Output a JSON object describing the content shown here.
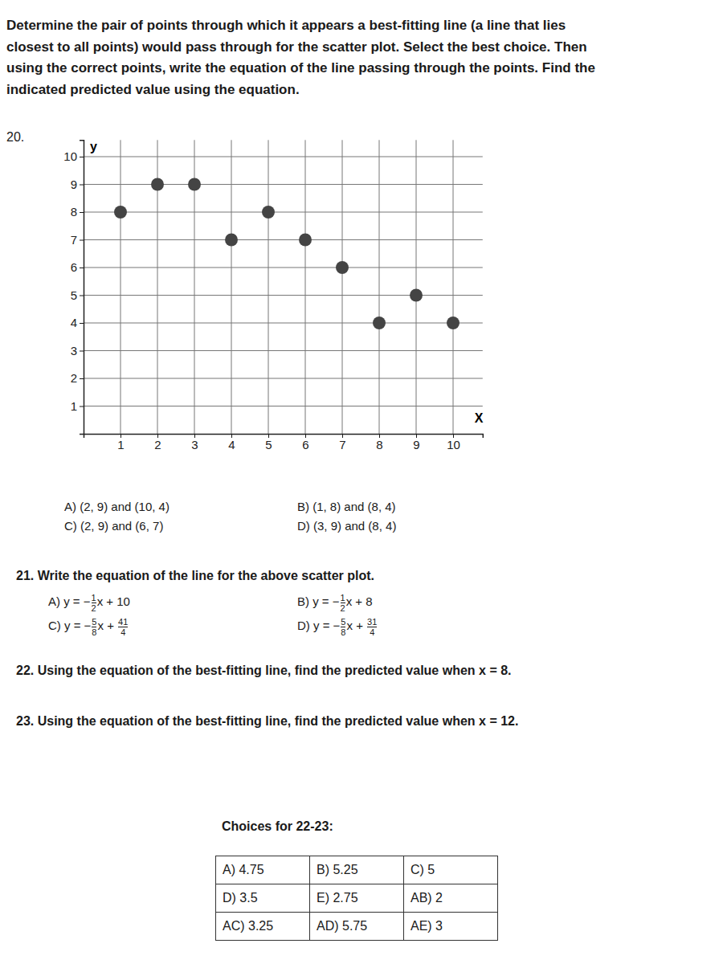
{
  "instructions": [
    "Determine the pair of points through which it appears a best-fitting line (a line that lies",
    "closest to all points) would pass through for the scatter plot. Select the best choice. Then",
    "using the correct points, write the equation of the line passing through the points. Find the",
    "indicated predicted value using the equation."
  ],
  "question_20": {
    "number": "20.",
    "choices": [
      "A) (2, 9) and (10, 4)",
      "B) (1, 8) and (8, 4)",
      "C) (2, 9) and (6, 7)",
      "D) (3, 9) and (8, 4)"
    ]
  },
  "chart_data": {
    "type": "scatter",
    "x": [
      1,
      2,
      3,
      4,
      5,
      6,
      7,
      8,
      9,
      10
    ],
    "values": [
      8,
      9,
      9,
      7,
      8,
      7,
      6,
      4,
      5,
      4
    ],
    "xlim": [
      0,
      10.8
    ],
    "ylim": [
      0,
      10.6
    ],
    "xticks": [
      1,
      2,
      3,
      4,
      5,
      6,
      7,
      8,
      9,
      10
    ],
    "yticks": [
      1,
      2,
      3,
      4,
      5,
      6,
      7,
      8,
      9,
      10
    ],
    "xlabel": "X",
    "ylabel": "y",
    "grid": true,
    "color": "#444444",
    "marker": "circle"
  },
  "question_21": {
    "text": "21. Write the equation of the line for the above scatter plot.",
    "choices": [
      {
        "label": "A)",
        "parts": [
          "y = −",
          {
            "num": "1",
            "den": "2"
          },
          "x + 10"
        ]
      },
      {
        "label": "B)",
        "parts": [
          "y = −",
          {
            "num": "1",
            "den": "2"
          },
          "x + 8"
        ]
      },
      {
        "label": "C)",
        "parts": [
          "y = −",
          {
            "num": "5",
            "den": "8"
          },
          "x + ",
          {
            "num": "41",
            "den": "4"
          }
        ]
      },
      {
        "label": "D)",
        "parts": [
          "y = −",
          {
            "num": "5",
            "den": "8"
          },
          "x + ",
          {
            "num": "31",
            "den": "4"
          }
        ]
      }
    ]
  },
  "question_22": "22. Using the equation of the best-fitting line, find the predicted value when x = 8.",
  "question_23": "23. Using the equation of the best-fitting line, find the predicted value when x = 12.",
  "choices_22_23": {
    "title": "Choices for 22-23:",
    "rows": [
      [
        "A) 4.75",
        "B) 5.25",
        "C) 5"
      ],
      [
        "D) 3.5",
        "E) 2.75",
        "AB) 2"
      ],
      [
        "AC) 3.25",
        "AD) 5.75",
        "AE) 3"
      ]
    ]
  }
}
